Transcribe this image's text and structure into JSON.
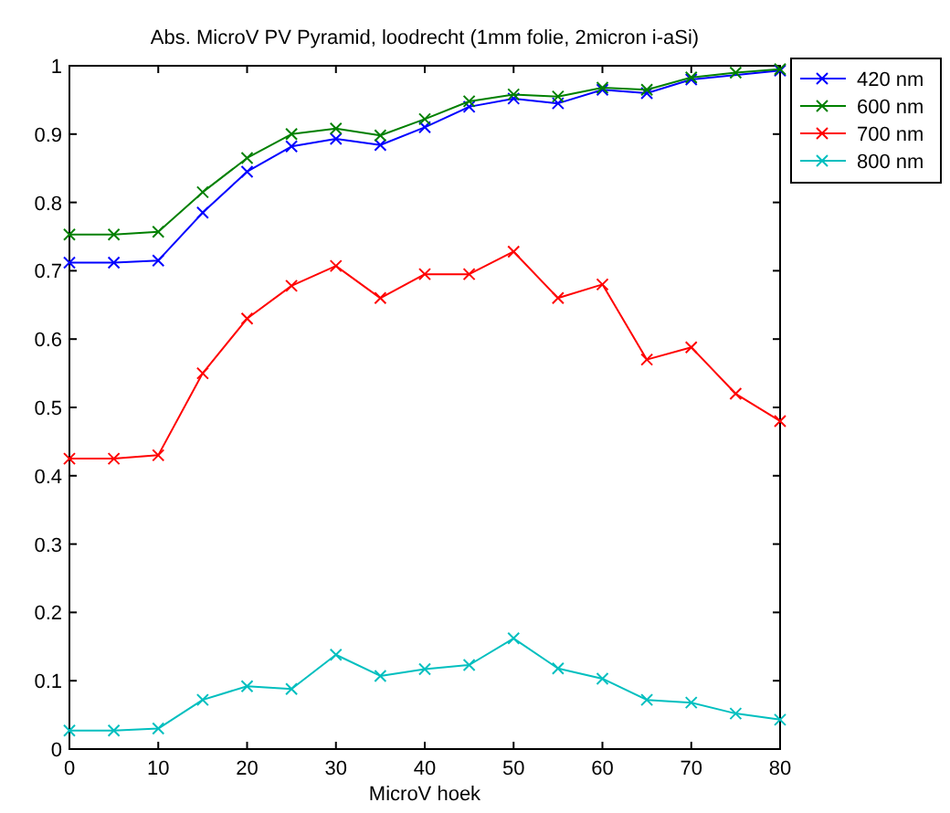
{
  "chart_data": {
    "type": "line",
    "title": "Abs. MicroV PV Pyramid, loodrecht (1mm folie, 2micron i-aSi)",
    "xlabel": "MicroV hoek",
    "x": [
      0,
      5,
      10,
      15,
      20,
      25,
      30,
      35,
      40,
      45,
      50,
      55,
      60,
      65,
      70,
      75,
      80
    ],
    "series": [
      {
        "name": "420 nm",
        "color": "#0000ff",
        "values": [
          0.712,
          0.712,
          0.715,
          0.785,
          0.845,
          0.882,
          0.893,
          0.884,
          0.91,
          0.94,
          0.952,
          0.945,
          0.965,
          0.96,
          0.98,
          null,
          0.993
        ]
      },
      {
        "name": "600 nm",
        "color": "#008000",
        "values": [
          0.753,
          0.753,
          0.757,
          0.815,
          0.865,
          0.9,
          0.908,
          0.898,
          0.922,
          0.948,
          0.958,
          0.955,
          0.968,
          0.965,
          0.983,
          0.99,
          0.995
        ]
      },
      {
        "name": "700 nm",
        "color": "#ff0000",
        "values": [
          0.425,
          0.425,
          0.43,
          0.55,
          0.63,
          0.678,
          0.707,
          0.66,
          0.695,
          0.695,
          0.728,
          0.66,
          0.68,
          0.57,
          0.588,
          0.52,
          0.48
        ]
      },
      {
        "name": "800 nm",
        "color": "#00bfbf",
        "values": [
          0.027,
          0.027,
          0.03,
          0.072,
          0.092,
          0.088,
          0.138,
          0.107,
          0.117,
          0.123,
          0.162,
          0.118,
          0.103,
          0.072,
          0.068,
          0.052,
          0.043
        ]
      }
    ],
    "xlim": [
      0,
      80
    ],
    "xticks": [
      0,
      10,
      20,
      30,
      40,
      50,
      60,
      70,
      80
    ],
    "ylim": [
      0,
      1
    ],
    "yticks": [
      0,
      0.1,
      0.2,
      0.3,
      0.4,
      0.5,
      0.6,
      0.7,
      0.8,
      0.9,
      1
    ],
    "grid": false,
    "legend": "top right",
    "marker": "cross",
    "line_style": "solid"
  }
}
